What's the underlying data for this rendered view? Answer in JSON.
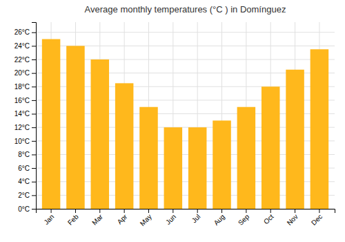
{
  "chart_data": {
    "type": "bar",
    "title": "Average monthly temperatures (°C ) in Domínguez",
    "categories": [
      "Jan",
      "Feb",
      "Mar",
      "Apr",
      "May",
      "Jun",
      "Jul",
      "Aug",
      "Sep",
      "Oct",
      "Nov",
      "Dec"
    ],
    "values": [
      25.0,
      24.0,
      22.0,
      18.5,
      15.0,
      12.0,
      12.0,
      13.0,
      15.0,
      18.0,
      20.5,
      23.5
    ],
    "color": "#FFB81C",
    "ylim": [
      0,
      27.5
    ],
    "yticks": [
      {
        "value": 0,
        "label": "0°C"
      },
      {
        "value": 2,
        "label": "2°C"
      },
      {
        "value": 4,
        "label": "4°C"
      },
      {
        "value": 6,
        "label": "6°C"
      },
      {
        "value": 8,
        "label": "8°C"
      },
      {
        "value": 10,
        "label": "10°C"
      },
      {
        "value": 12,
        "label": "12°C"
      },
      {
        "value": 14,
        "label": "14°C"
      },
      {
        "value": 16,
        "label": "16°C"
      },
      {
        "value": 18,
        "label": "18°C"
      },
      {
        "value": 20,
        "label": "20°C"
      },
      {
        "value": 22,
        "label": "22°C"
      },
      {
        "value": 24,
        "label": "24°C"
      },
      {
        "value": 26,
        "label": "26°C"
      }
    ],
    "grid": true
  }
}
